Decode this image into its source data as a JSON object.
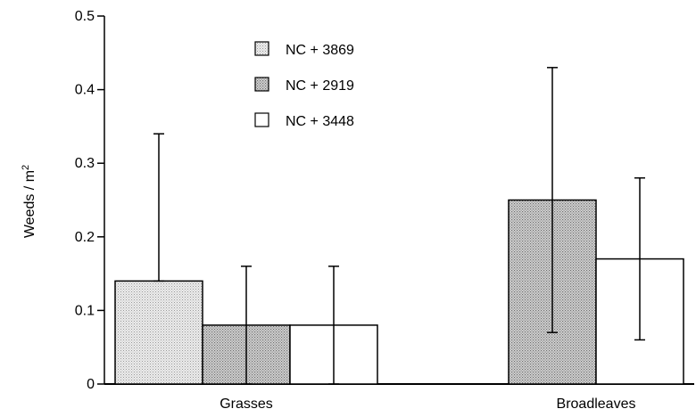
{
  "chart_data": {
    "type": "bar",
    "categories": [
      "Grasses",
      "Broadleaves"
    ],
    "series": [
      {
        "name": "NC + 3869",
        "values": [
          0.14,
          null
        ],
        "err_low": [
          0.14,
          null
        ],
        "err_high": [
          0.34,
          null
        ],
        "fill": "light-dotted"
      },
      {
        "name": "NC + 2919",
        "values": [
          0.08,
          0.25
        ],
        "err_low": [
          0.0,
          0.07
        ],
        "err_high": [
          0.16,
          0.43
        ],
        "fill": "dark-dotted"
      },
      {
        "name": "NC + 3448",
        "values": [
          0.08,
          0.17
        ],
        "err_low": [
          0.0,
          0.06
        ],
        "err_high": [
          0.16,
          0.28
        ],
        "fill": "white"
      }
    ],
    "ylabel": "Weeds / m",
    "ylabel_superscript": "2",
    "ylim": [
      0,
      0.5
    ],
    "yticks": [
      "0",
      "0.1",
      "0.2",
      "0.3",
      "0.4",
      "0.5"
    ],
    "ytick_values": [
      0,
      0.1,
      0.2,
      0.3,
      0.4,
      0.5
    ],
    "grid": false,
    "legend_position": "top-left"
  }
}
